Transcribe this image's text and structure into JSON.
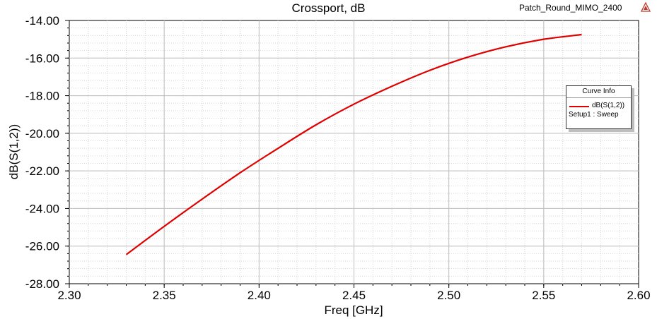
{
  "header": {
    "title": "Crossport, dB",
    "project": "Patch_Round_MIMO_2400"
  },
  "legend": {
    "title": "Curve Info",
    "trace_label": "dB(S(1,2))",
    "trace_sub": "Setup1 : Sweep"
  },
  "chart_data": {
    "type": "line",
    "title": "Crossport, dB",
    "xlabel": "Freq [GHz]",
    "ylabel": "dB(S(1,2))",
    "xlim": [
      2.3,
      2.6
    ],
    "ylim": [
      -28.0,
      -14.0
    ],
    "x_ticks": [
      "2.30",
      "2.35",
      "2.40",
      "2.45",
      "2.50",
      "2.55",
      "2.60"
    ],
    "y_ticks": [
      "-14.00",
      "-16.00",
      "-18.00",
      "-20.00",
      "-22.00",
      "-24.00",
      "-26.00",
      "-28.00"
    ],
    "grid": true,
    "legend_position": "right",
    "series": [
      {
        "name": "dB(S(1,2))",
        "color": "#e00000",
        "x": [
          2.33,
          2.35,
          2.37,
          2.39,
          2.41,
          2.43,
          2.45,
          2.47,
          2.49,
          2.51,
          2.53,
          2.55,
          2.57
        ],
        "y": [
          -26.45,
          -24.95,
          -23.5,
          -22.1,
          -20.8,
          -19.55,
          -18.45,
          -17.5,
          -16.65,
          -15.95,
          -15.4,
          -15.0,
          -14.75
        ]
      }
    ]
  }
}
